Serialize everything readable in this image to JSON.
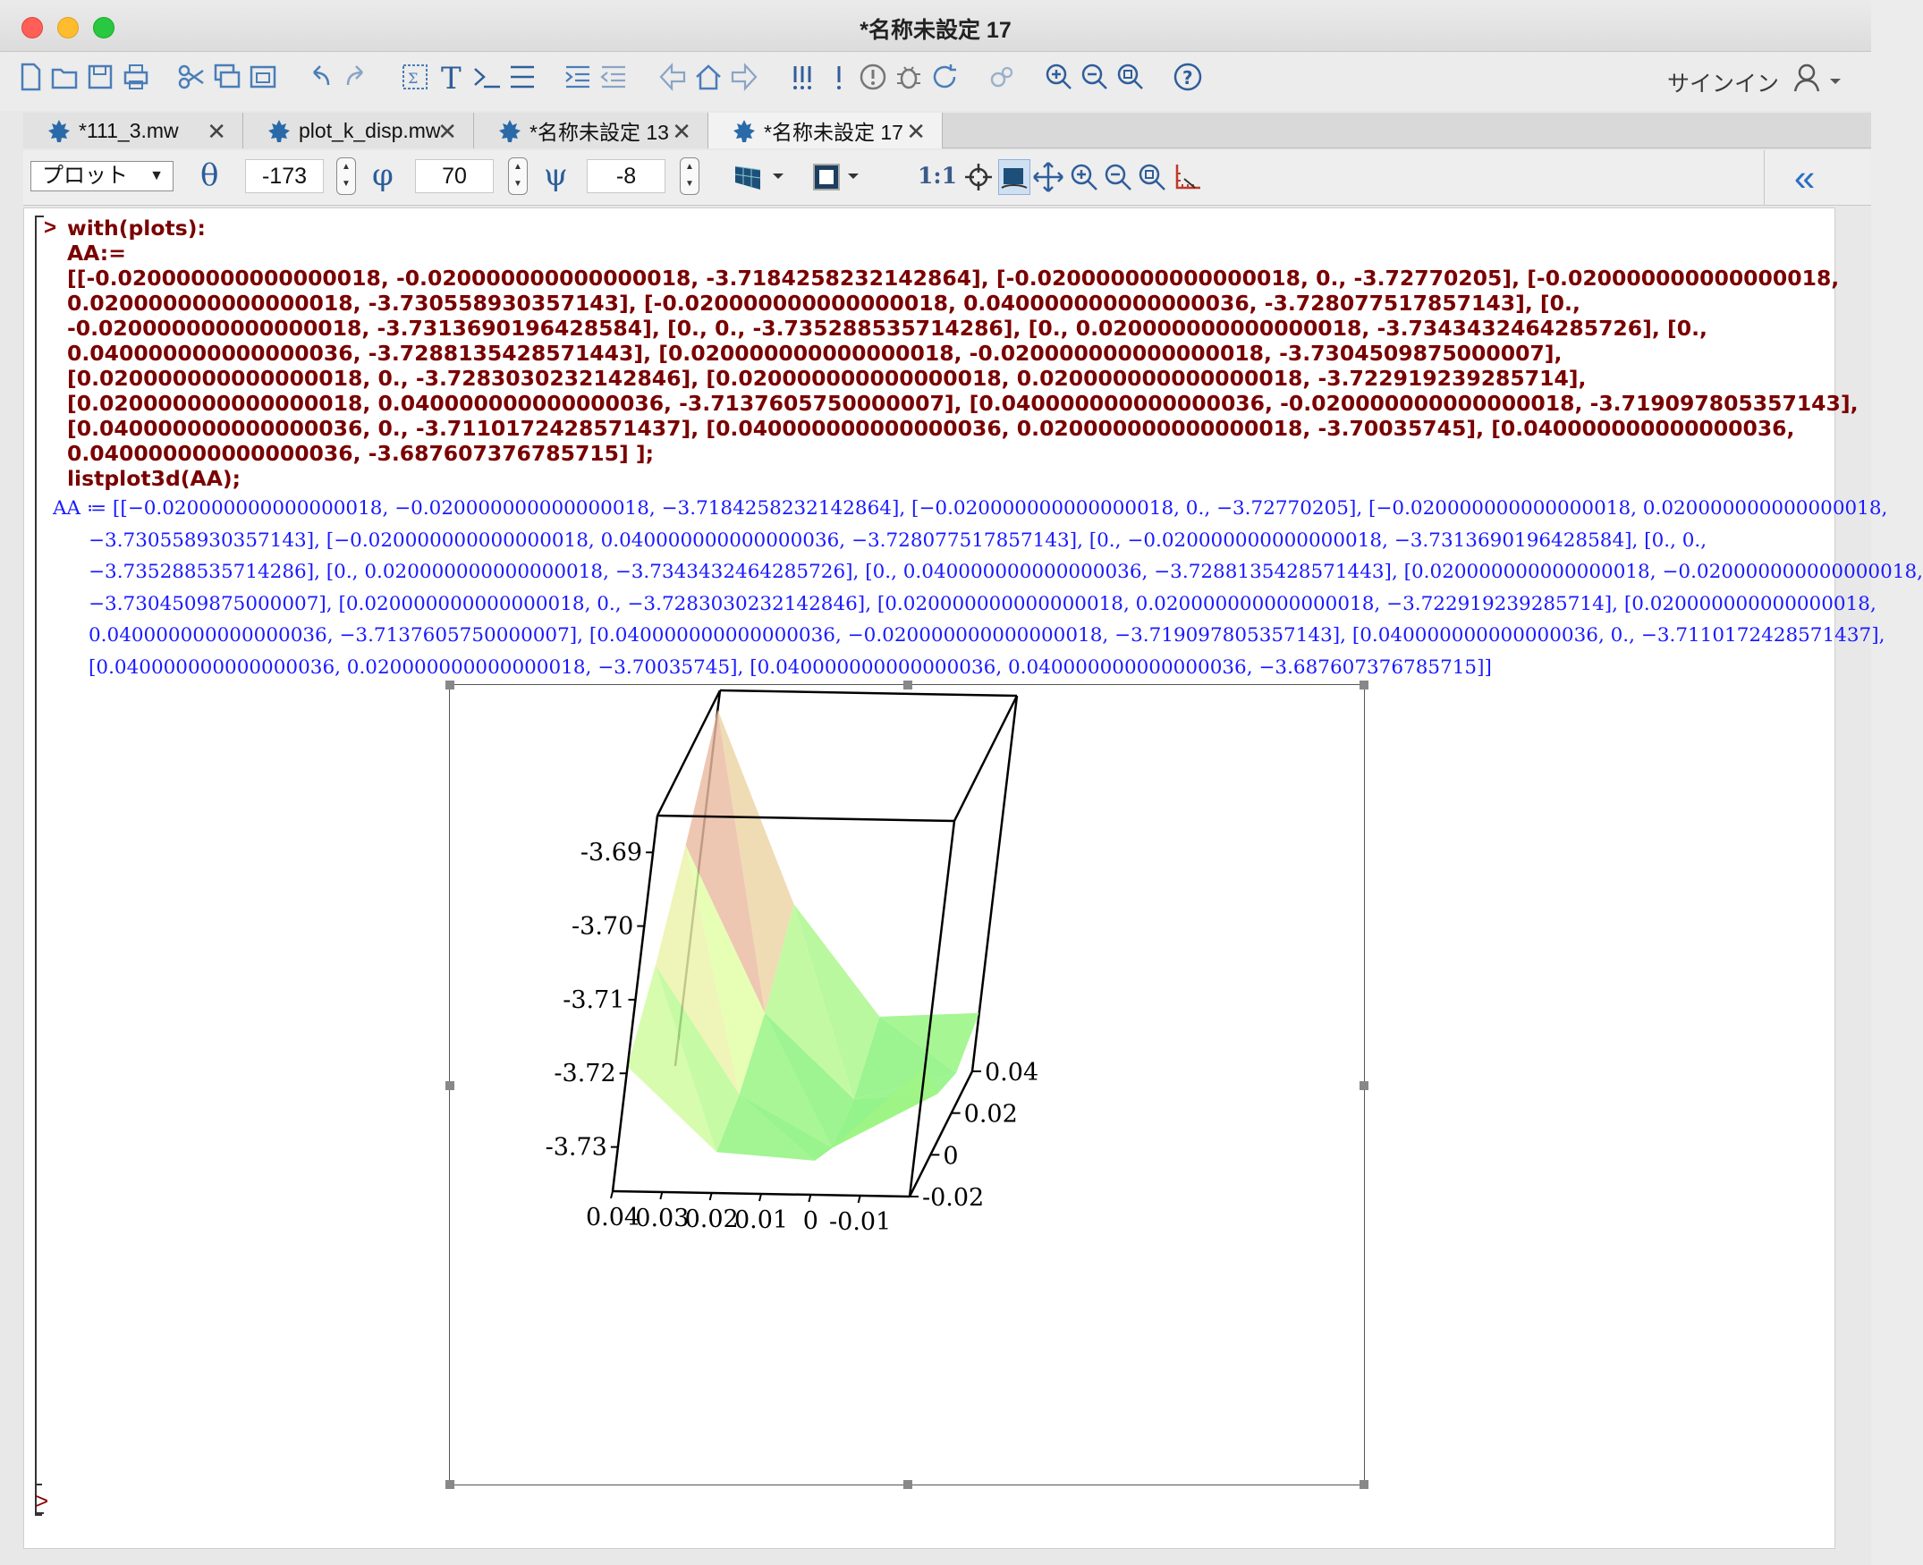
{
  "window": {
    "title": "*名称未設定 17"
  },
  "toolbar": {
    "signin": "サインイン"
  },
  "tabs": [
    {
      "label": "*111_3.mw"
    },
    {
      "label": "plot_k_disp.mw"
    },
    {
      "label": "*名称未設定 13"
    },
    {
      "label": "*名称未設定 17"
    }
  ],
  "context": {
    "mode": "プロット",
    "theta_label": "θ",
    "theta": "-173",
    "phi_label": "φ",
    "phi": "70",
    "psi_label": "ψ",
    "psi": "-8",
    "ratio": "1:1",
    "collapse": "«"
  },
  "worksheet": {
    "prompt": ">",
    "input_lines": [
      "with(plots):",
      "AA:=",
      "[[-0.020000000000000018, -0.020000000000000018, -3.7184258232142864],  [-0.020000000000000018, 0., -3.72770205],  [-0.020000000000000018,",
      "0.020000000000000018, -3.730558930357143],  [-0.020000000000000018, 0.040000000000000036, -3.728077517857143],  [0.,",
      "-0.020000000000000018, -3.7313690196428584],  [0., 0., -3.735288535714286],  [0., 0.020000000000000018, -3.7343432464285726],  [0.,",
      "0.040000000000000036, -3.7288135428571443],  [0.020000000000000018, -0.020000000000000018, -3.7304509875000007],",
      "[0.020000000000000018, 0., -3.7283030232142846],  [0.020000000000000018, 0.020000000000000018, -3.722919239285714],",
      "[0.020000000000000018, 0.040000000000000036, -3.7137605750000007],  [0.040000000000000036, -0.020000000000000018, -3.719097805357143],",
      "[0.040000000000000036, 0., -3.7110172428571437],  [0.040000000000000036, 0.020000000000000018, -3.70035745],  [0.040000000000000036,",
      "0.040000000000000036, -3.687607376785715]  ];",
      "listplot3d(AA);"
    ],
    "output_lines": [
      "AA ≔ [[−0.020000000000000018, −0.020000000000000018, −3.7184258232142864], [−0.020000000000000018, 0., −3.72770205], [−0.020000000000000018, 0.020000000000000018,",
      "−3.730558930357143], [−0.020000000000000018, 0.040000000000000036, −3.728077517857143], [0., −0.020000000000000018, −3.7313690196428584], [0., 0.,",
      "−3.735288535714286], [0., 0.020000000000000018, −3.7343432464285726], [0., 0.040000000000000036, −3.7288135428571443], [0.020000000000000018, −0.020000000000000018,",
      "−3.7304509875000007], [0.020000000000000018, 0., −3.7283030232142846], [0.020000000000000018, 0.020000000000000018, −3.722919239285714], [0.020000000000000018,",
      "0.040000000000000036, −3.7137605750000007], [0.040000000000000036, −0.020000000000000018, −3.719097805357143], [0.040000000000000036, 0., −3.7110172428571437],",
      "[0.040000000000000036, 0.020000000000000018, −3.70035745], [0.040000000000000036, 0.040000000000000036, −3.687607376785715]]"
    ],
    "final_prompt": ">"
  },
  "plot": {
    "z_ticks": [
      "-3.69",
      "-3.70",
      "-3.71",
      "-3.72",
      "-3.73"
    ],
    "x_ticks": [
      "0.04",
      "0.03",
      "0.02",
      "0.01",
      "0",
      "-0.01"
    ],
    "y_ticks": [
      "0.04",
      "0.02",
      "0",
      "-0.02"
    ]
  },
  "chart_data": {
    "type": "surface3d",
    "x": [
      -0.02,
      0,
      0.02,
      0.04
    ],
    "y": [
      -0.02,
      0,
      0.02,
      0.04
    ],
    "z": [
      [
        -3.7184258232142864,
        -3.72770205,
        -3.730558930357143,
        -3.728077517857143
      ],
      [
        -3.7313690196428584,
        -3.735288535714286,
        -3.7343432464285726,
        -3.7288135428571443
      ],
      [
        -3.7304509875000007,
        -3.7283030232142846,
        -3.722919239285714,
        -3.7137605750000007
      ],
      [
        -3.719097805357143,
        -3.7110172428571437,
        -3.70035745,
        -3.687607376785715
      ]
    ],
    "view": {
      "theta": -173,
      "phi": 70,
      "psi": -8
    },
    "colors": {
      "low": "#66ee66",
      "mid": "#eeffaa",
      "high": "#ee5599"
    }
  }
}
